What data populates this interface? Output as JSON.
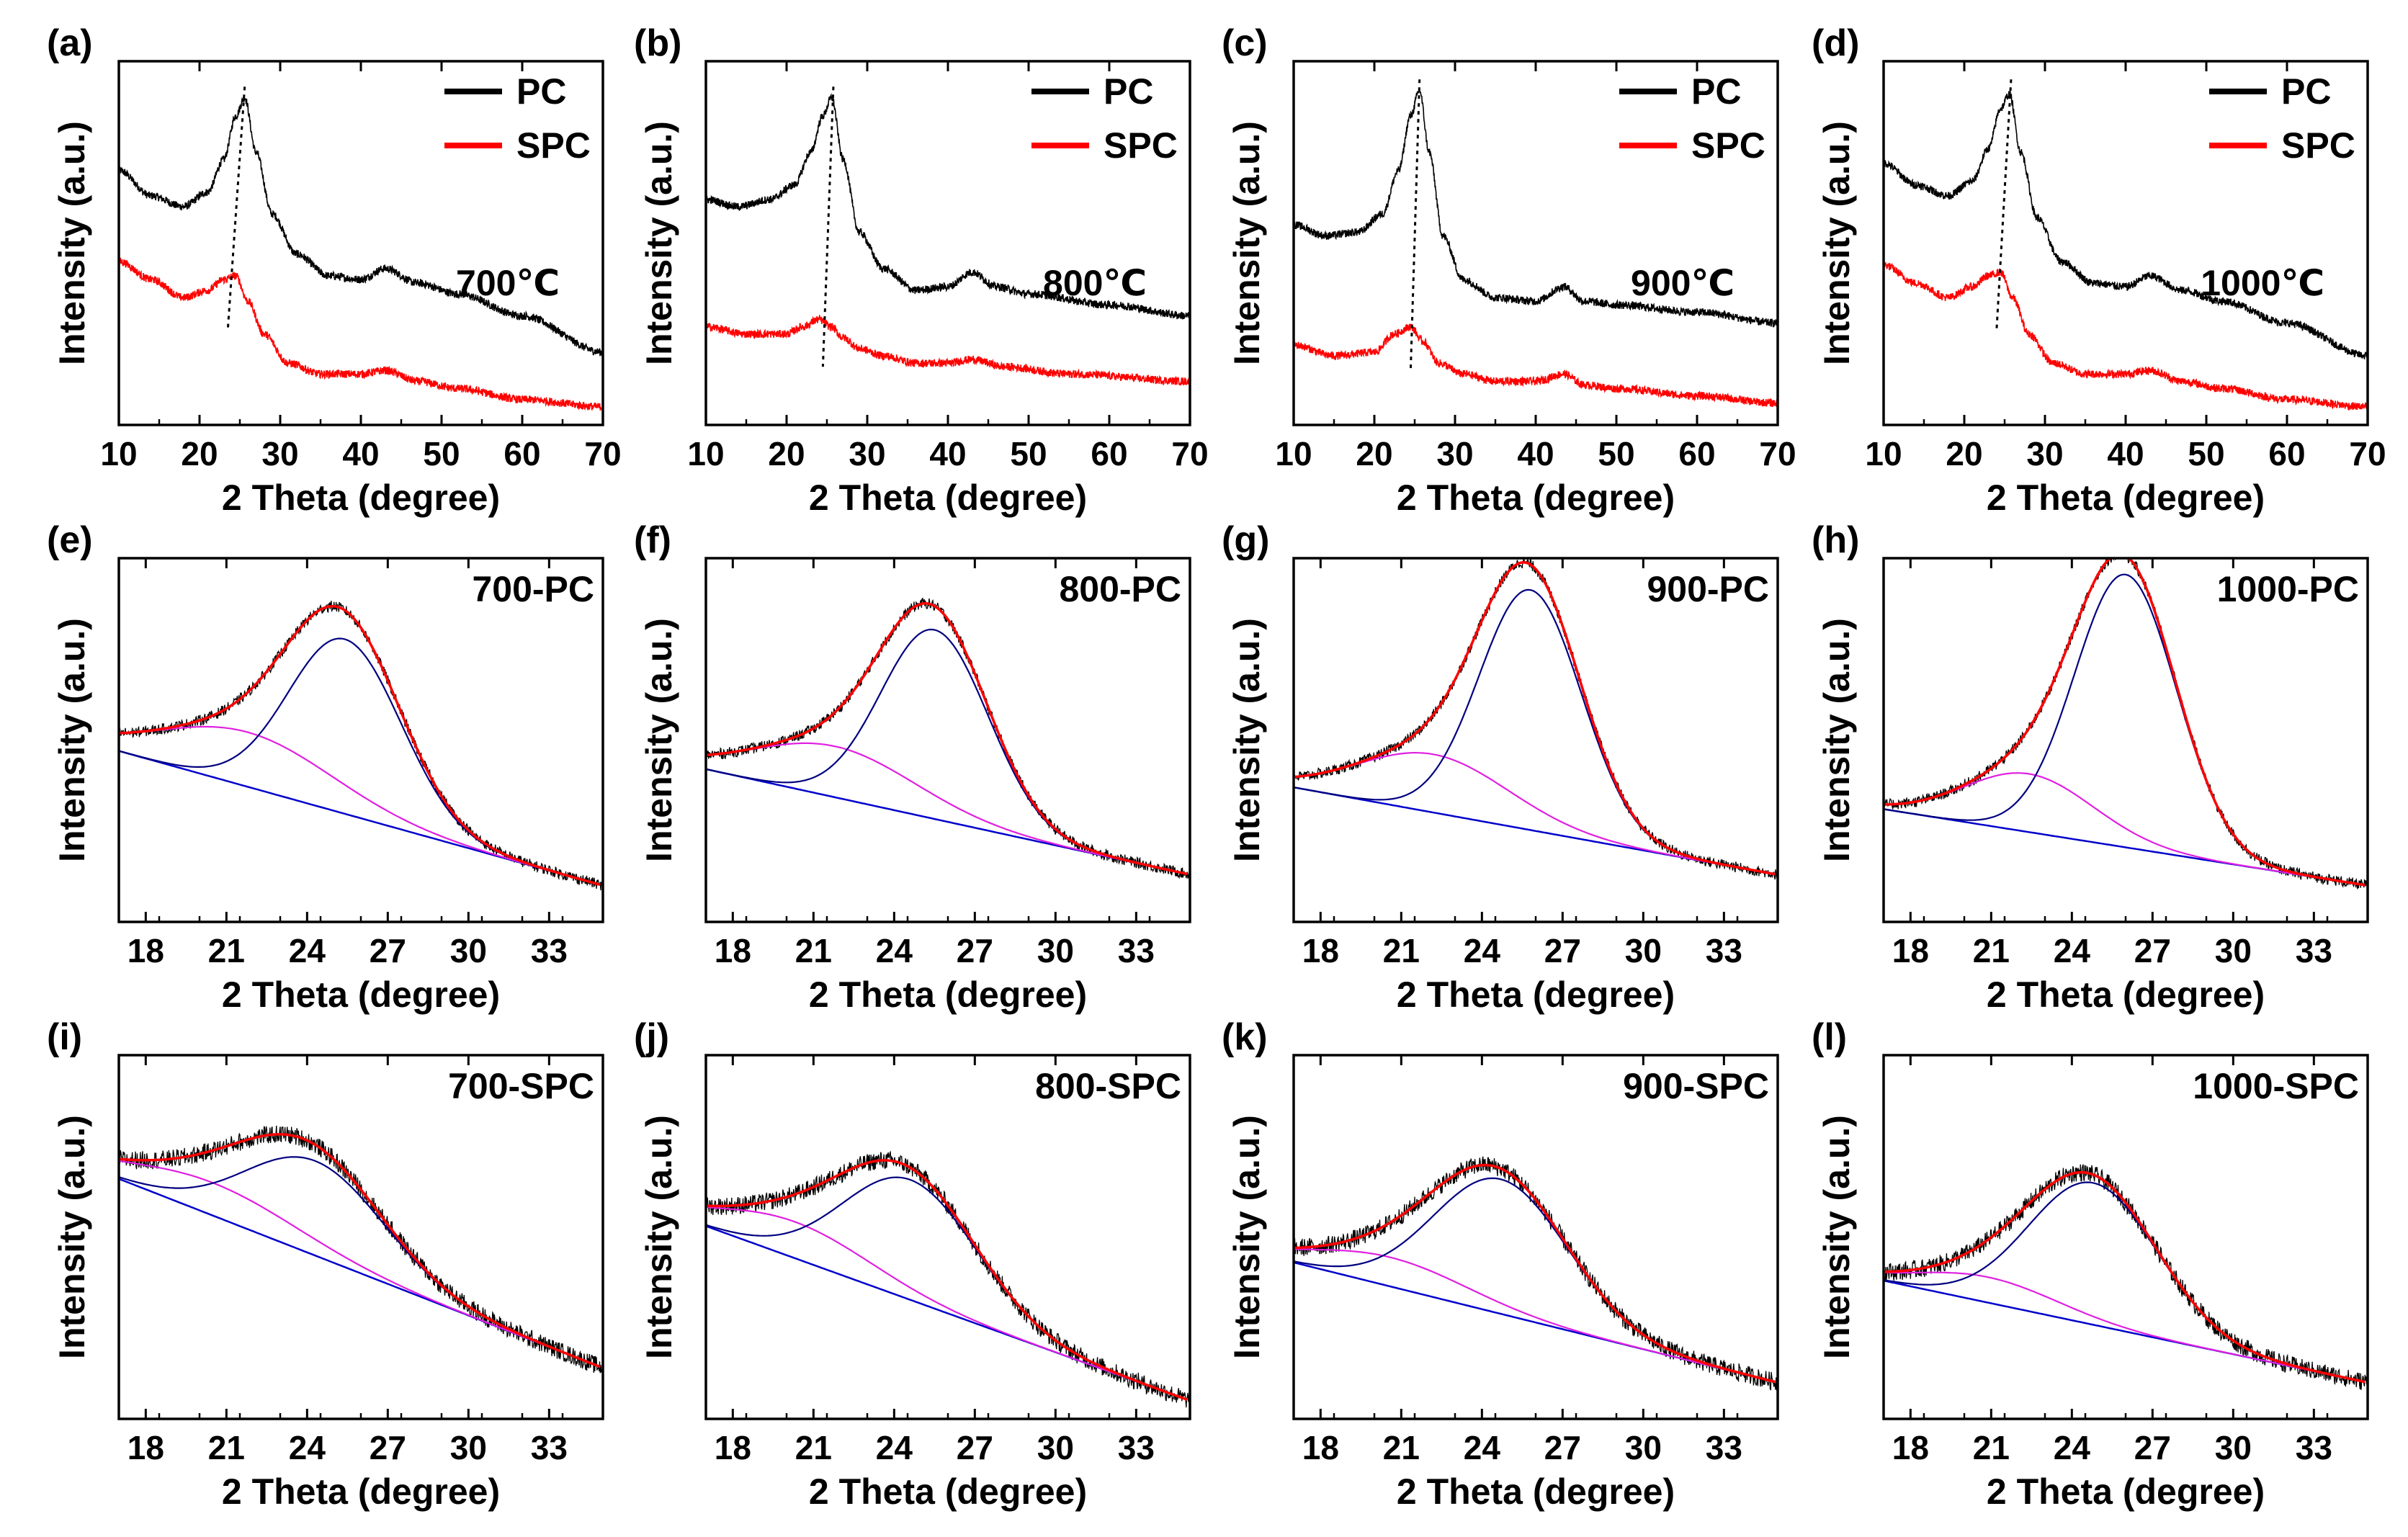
{
  "figure": {
    "colors": {
      "pc": "#000000",
      "spc": "#ff0000",
      "fit_total": "#ff0000",
      "fit_graphitic": "#000080",
      "fit_amorphous": "#e020e0",
      "baseline": "#0000cc",
      "peak_guide": "#000000"
    }
  },
  "chart_data": [
    {
      "type": "line",
      "panel": "(a)",
      "kind": "xrd",
      "xlabel": "2 Theta (degree)",
      "ylabel": "Intensity (a.u.)",
      "xlim": [
        10,
        70
      ],
      "ylim": [
        0,
        1
      ],
      "xticks": [
        "10",
        "20",
        "30",
        "40",
        "50",
        "60",
        "70"
      ],
      "xtick_values": [
        10,
        20,
        30,
        40,
        50,
        60,
        70
      ],
      "annotation": "700℃",
      "legend": [
        "PC",
        "SPC"
      ],
      "peak_guide": [
        [
          25.6,
          0.93
        ],
        [
          23.5,
          0.26
        ]
      ],
      "series": [
        {
          "name": "PC",
          "x": [
            10,
            14,
            18,
            21,
            23,
            24.5,
            25.6,
            27,
            29,
            32,
            36,
            40,
            43,
            47,
            52,
            60,
            70
          ],
          "y": [
            0.7,
            0.63,
            0.6,
            0.64,
            0.73,
            0.85,
            0.9,
            0.75,
            0.58,
            0.47,
            0.41,
            0.4,
            0.43,
            0.39,
            0.36,
            0.3,
            0.2
          ]
        },
        {
          "name": "SPC",
          "x": [
            10,
            14,
            18,
            21,
            23,
            24.5,
            26,
            28,
            31,
            35,
            40,
            43,
            47,
            52,
            60,
            70
          ],
          "y": [
            0.45,
            0.4,
            0.35,
            0.37,
            0.4,
            0.41,
            0.34,
            0.25,
            0.17,
            0.14,
            0.14,
            0.15,
            0.12,
            0.1,
            0.07,
            0.05
          ]
        }
      ]
    },
    {
      "type": "line",
      "panel": "(b)",
      "kind": "xrd",
      "xlabel": "2 Theta (degree)",
      "ylabel": "Intensity (a.u.)",
      "xlim": [
        10,
        70
      ],
      "ylim": [
        0,
        1
      ],
      "xticks": [
        "10",
        "20",
        "30",
        "40",
        "50",
        "60",
        "70"
      ],
      "xtick_values": [
        10,
        20,
        30,
        40,
        50,
        60,
        70
      ],
      "annotation": "800℃",
      "legend": [
        "PC",
        "SPC"
      ],
      "peak_guide": [
        [
          25.8,
          0.93
        ],
        [
          24.5,
          0.16
        ]
      ],
      "series": [
        {
          "name": "PC",
          "x": [
            10,
            14,
            18,
            21,
            23,
            24.5,
            25.6,
            27,
            29,
            32,
            36,
            40,
            43,
            46,
            50,
            60,
            70
          ],
          "y": [
            0.62,
            0.6,
            0.62,
            0.66,
            0.75,
            0.85,
            0.9,
            0.73,
            0.53,
            0.43,
            0.37,
            0.38,
            0.42,
            0.38,
            0.36,
            0.33,
            0.3
          ]
        },
        {
          "name": "SPC",
          "x": [
            10,
            15,
            20,
            22,
            24,
            25.5,
            27,
            29,
            32,
            36,
            40,
            43,
            47,
            55,
            70
          ],
          "y": [
            0.27,
            0.25,
            0.25,
            0.27,
            0.29,
            0.27,
            0.24,
            0.21,
            0.19,
            0.17,
            0.17,
            0.18,
            0.16,
            0.14,
            0.12
          ]
        }
      ]
    },
    {
      "type": "line",
      "panel": "(c)",
      "kind": "xrd",
      "xlabel": "2 Theta (degree)",
      "ylabel": "Intensity (a.u.)",
      "xlim": [
        10,
        70
      ],
      "ylim": [
        0,
        1
      ],
      "xticks": [
        "10",
        "20",
        "30",
        "40",
        "50",
        "60",
        "70"
      ],
      "xtick_values": [
        10,
        20,
        30,
        40,
        50,
        60,
        70
      ],
      "annotation": "900℃",
      "legend": [
        "PC",
        "SPC"
      ],
      "peak_guide": [
        [
          25.6,
          0.95
        ],
        [
          24.5,
          0.15
        ]
      ],
      "series": [
        {
          "name": "PC",
          "x": [
            10,
            14,
            18,
            21,
            23,
            24.5,
            25.6,
            26.8,
            28.5,
            31,
            35,
            40,
            43.5,
            46,
            50,
            60,
            70
          ],
          "y": [
            0.55,
            0.52,
            0.53,
            0.58,
            0.7,
            0.85,
            0.92,
            0.75,
            0.52,
            0.4,
            0.35,
            0.34,
            0.38,
            0.34,
            0.33,
            0.31,
            0.28
          ]
        },
        {
          "name": "SPC",
          "x": [
            10,
            15,
            20,
            22.5,
            24.5,
            26,
            28,
            31,
            35,
            40,
            43.5,
            46,
            50,
            60,
            70
          ],
          "y": [
            0.22,
            0.19,
            0.2,
            0.25,
            0.27,
            0.23,
            0.17,
            0.14,
            0.12,
            0.12,
            0.14,
            0.11,
            0.1,
            0.08,
            0.06
          ]
        }
      ]
    },
    {
      "type": "line",
      "panel": "(d)",
      "kind": "xrd",
      "xlabel": "2 Theta (degree)",
      "ylabel": "Intensity (a.u.)",
      "xlim": [
        10,
        70
      ],
      "ylim": [
        0,
        1
      ],
      "xticks": [
        "10",
        "20",
        "30",
        "40",
        "50",
        "60",
        "70"
      ],
      "xtick_values": [
        10,
        20,
        30,
        40,
        50,
        60,
        70
      ],
      "annotation": "1000℃",
      "legend": [
        "PC",
        "SPC"
      ],
      "peak_guide": [
        [
          25.8,
          0.95
        ],
        [
          24,
          0.26
        ]
      ],
      "series": [
        {
          "name": "PC",
          "x": [
            10,
            14,
            18,
            21,
            23,
            24.5,
            25.6,
            27,
            29,
            32,
            36,
            40,
            43,
            47,
            52,
            60,
            70
          ],
          "y": [
            0.72,
            0.66,
            0.63,
            0.67,
            0.76,
            0.87,
            0.91,
            0.75,
            0.57,
            0.45,
            0.39,
            0.38,
            0.41,
            0.37,
            0.34,
            0.28,
            0.19
          ]
        },
        {
          "name": "SPC",
          "x": [
            10,
            14,
            18,
            21,
            23,
            24.5,
            26,
            28,
            31,
            35,
            40,
            43,
            47,
            52,
            60,
            70
          ],
          "y": [
            0.44,
            0.39,
            0.35,
            0.38,
            0.41,
            0.42,
            0.35,
            0.25,
            0.17,
            0.14,
            0.14,
            0.15,
            0.12,
            0.1,
            0.07,
            0.05
          ]
        }
      ]
    },
    {
      "type": "line",
      "panel": "(e)",
      "kind": "fit",
      "xlabel": "2 Theta (degree)",
      "ylabel": "Intensity (a.u.)",
      "xlim": [
        17,
        35
      ],
      "ylim": [
        0,
        1
      ],
      "xticks": [
        "18",
        "21",
        "24",
        "27",
        "30",
        "33"
      ],
      "xtick_values": [
        18,
        21,
        24,
        27,
        30,
        33
      ],
      "annotation": "700-PC",
      "fit": {
        "baseline": [
          0.47,
          0.1
        ],
        "graphitic": {
          "center": 25.4,
          "height": 0.48,
          "width": 2.1
        },
        "amorphous": {
          "center": 21.8,
          "height": 0.15,
          "width": 3.2
        }
      }
    },
    {
      "type": "line",
      "panel": "(f)",
      "kind": "fit",
      "xlabel": "2 Theta (degree)",
      "ylabel": "Intensity (a.u.)",
      "xlim": [
        17,
        35
      ],
      "ylim": [
        0,
        1
      ],
      "xticks": [
        "18",
        "21",
        "24",
        "27",
        "30",
        "33"
      ],
      "xtick_values": [
        18,
        21,
        24,
        27,
        30,
        33
      ],
      "annotation": "800-PC",
      "fit": {
        "baseline": [
          0.42,
          0.13
        ],
        "graphitic": {
          "center": 25.5,
          "height": 0.52,
          "width": 2.0
        },
        "amorphous": {
          "center": 21.8,
          "height": 0.14,
          "width": 3.0
        }
      }
    },
    {
      "type": "line",
      "panel": "(g)",
      "kind": "fit",
      "xlabel": "2 Theta (degree)",
      "ylabel": "Intensity (a.u.)",
      "xlim": [
        17,
        35
      ],
      "ylim": [
        0,
        1
      ],
      "xticks": [
        "18",
        "21",
        "24",
        "27",
        "30",
        "33"
      ],
      "xtick_values": [
        18,
        21,
        24,
        27,
        30,
        33
      ],
      "annotation": "900-PC",
      "fit": {
        "baseline": [
          0.37,
          0.13
        ],
        "graphitic": {
          "center": 25.8,
          "height": 0.66,
          "width": 1.9
        },
        "amorphous": {
          "center": 22.2,
          "height": 0.16,
          "width": 2.8
        }
      }
    },
    {
      "type": "line",
      "panel": "(h)",
      "kind": "fit",
      "xlabel": "2 Theta (degree)",
      "ylabel": "Intensity (a.u.)",
      "xlim": [
        17,
        35
      ],
      "ylim": [
        0,
        1
      ],
      "xticks": [
        "18",
        "21",
        "24",
        "27",
        "30",
        "33"
      ],
      "xtick_values": [
        18,
        21,
        24,
        27,
        30,
        33
      ],
      "annotation": "1000-PC",
      "fit": {
        "baseline": [
          0.31,
          0.1
        ],
        "graphitic": {
          "center": 26.0,
          "height": 0.75,
          "width": 1.9
        },
        "amorphous": {
          "center": 22.4,
          "height": 0.16,
          "width": 2.4
        }
      }
    },
    {
      "type": "line",
      "panel": "(i)",
      "kind": "fit",
      "xlabel": "2 Theta (degree)",
      "ylabel": "Intensity (a.u.)",
      "xlim": [
        17,
        35
      ],
      "ylim": [
        0,
        1
      ],
      "xticks": [
        "18",
        "21",
        "24",
        "27",
        "30",
        "33"
      ],
      "xtick_values": [
        18,
        21,
        24,
        27,
        30,
        33
      ],
      "annotation": "700-SPC",
      "fit": {
        "baseline": [
          0.66,
          0.14
        ],
        "graphitic": {
          "center": 24.3,
          "height": 0.26,
          "width": 2.6
        },
        "amorphous": {
          "center": 20.5,
          "height": 0.09,
          "width": 3.2
        }
      }
    },
    {
      "type": "line",
      "panel": "(j)",
      "kind": "fit",
      "xlabel": "2 Theta (degree)",
      "ylabel": "Intensity (a.u.)",
      "xlim": [
        17,
        35
      ],
      "ylim": [
        0,
        1
      ],
      "xticks": [
        "18",
        "21",
        "24",
        "27",
        "30",
        "33"
      ],
      "xtick_values": [
        18,
        21,
        24,
        27,
        30,
        33
      ],
      "annotation": "800-SPC",
      "fit": {
        "baseline": [
          0.53,
          0.05
        ],
        "graphitic": {
          "center": 24.6,
          "height": 0.33,
          "width": 2.5
        },
        "amorphous": {
          "center": 20.3,
          "height": 0.1,
          "width": 2.9
        }
      }
    },
    {
      "type": "line",
      "panel": "(k)",
      "kind": "fit",
      "xlabel": "2 Theta (degree)",
      "ylabel": "Intensity (a.u.)",
      "xlim": [
        17,
        35
      ],
      "ylim": [
        0,
        1
      ],
      "xticks": [
        "18",
        "21",
        "24",
        "27",
        "30",
        "33"
      ],
      "xtick_values": [
        18,
        21,
        24,
        27,
        30,
        33
      ],
      "annotation": "900-SPC",
      "fit": {
        "baseline": [
          0.43,
          0.1
        ],
        "graphitic": {
          "center": 24.7,
          "height": 0.37,
          "width": 2.5
        },
        "amorphous": {
          "center": 20.6,
          "height": 0.08,
          "width": 2.9
        }
      }
    },
    {
      "type": "line",
      "panel": "(l)",
      "kind": "fit",
      "xlabel": "2 Theta (degree)",
      "ylabel": "Intensity (a.u.)",
      "xlim": [
        17,
        35
      ],
      "ylim": [
        0,
        1
      ],
      "xticks": [
        "18",
        "21",
        "24",
        "27",
        "30",
        "33"
      ],
      "xtick_values": [
        18,
        21,
        24,
        27,
        30,
        33
      ],
      "annotation": "1000-SPC",
      "fit": {
        "baseline": [
          0.38,
          0.1
        ],
        "graphitic": {
          "center": 24.8,
          "height": 0.39,
          "width": 2.4
        },
        "amorphous": {
          "center": 20.9,
          "height": 0.07,
          "width": 2.6
        }
      }
    }
  ]
}
